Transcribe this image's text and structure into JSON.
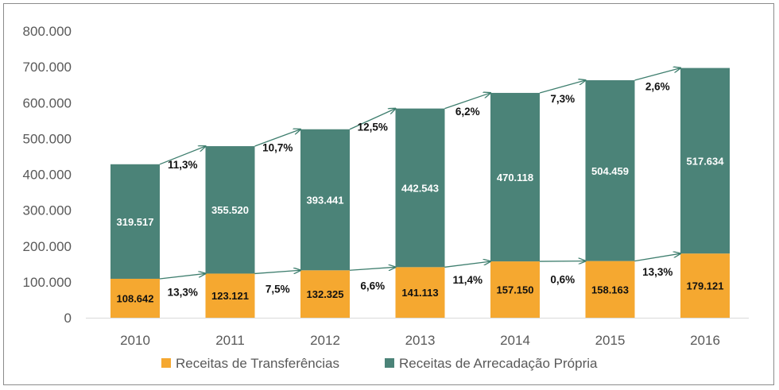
{
  "chart_data": {
    "type": "bar",
    "stacked": true,
    "title": "",
    "xlabel": "",
    "ylabel": "",
    "ylim": [
      0,
      800000
    ],
    "y_ticks": [
      "0",
      "100.000",
      "200.000",
      "300.000",
      "400.000",
      "500.000",
      "600.000",
      "700.000",
      "800.000"
    ],
    "grid": false,
    "legend_position": "bottom",
    "categories": [
      "2010",
      "2011",
      "2012",
      "2013",
      "2014",
      "2015",
      "2016"
    ],
    "series": [
      {
        "name": "Receitas de Transferências",
        "color": "#F5A830",
        "label_color": "#111111",
        "values": [
          108642,
          123121,
          132325,
          141113,
          157150,
          158163,
          179121
        ],
        "labels": [
          "108.642",
          "123.121",
          "132.325",
          "141.113",
          "157.150",
          "158.163",
          "179.121"
        ],
        "growth_labels": [
          "13,3%",
          "7,5%",
          "6,6%",
          "11,4%",
          "0,6%",
          "13,3%"
        ]
      },
      {
        "name": "Receitas de Arrecadação Própria",
        "color": "#4B8378",
        "label_color": "#ffffff",
        "values": [
          319517,
          355520,
          393441,
          442543,
          470118,
          504459,
          517634
        ],
        "labels": [
          "319.517",
          "355.520",
          "393.441",
          "442.543",
          "470.118",
          "504.459",
          "517.634"
        ],
        "growth_labels": [
          "11,3%",
          "10,7%",
          "12,5%",
          "6,2%",
          "7,3%",
          "2,6%"
        ]
      }
    ],
    "arrow_color": "#3E7E6E"
  }
}
